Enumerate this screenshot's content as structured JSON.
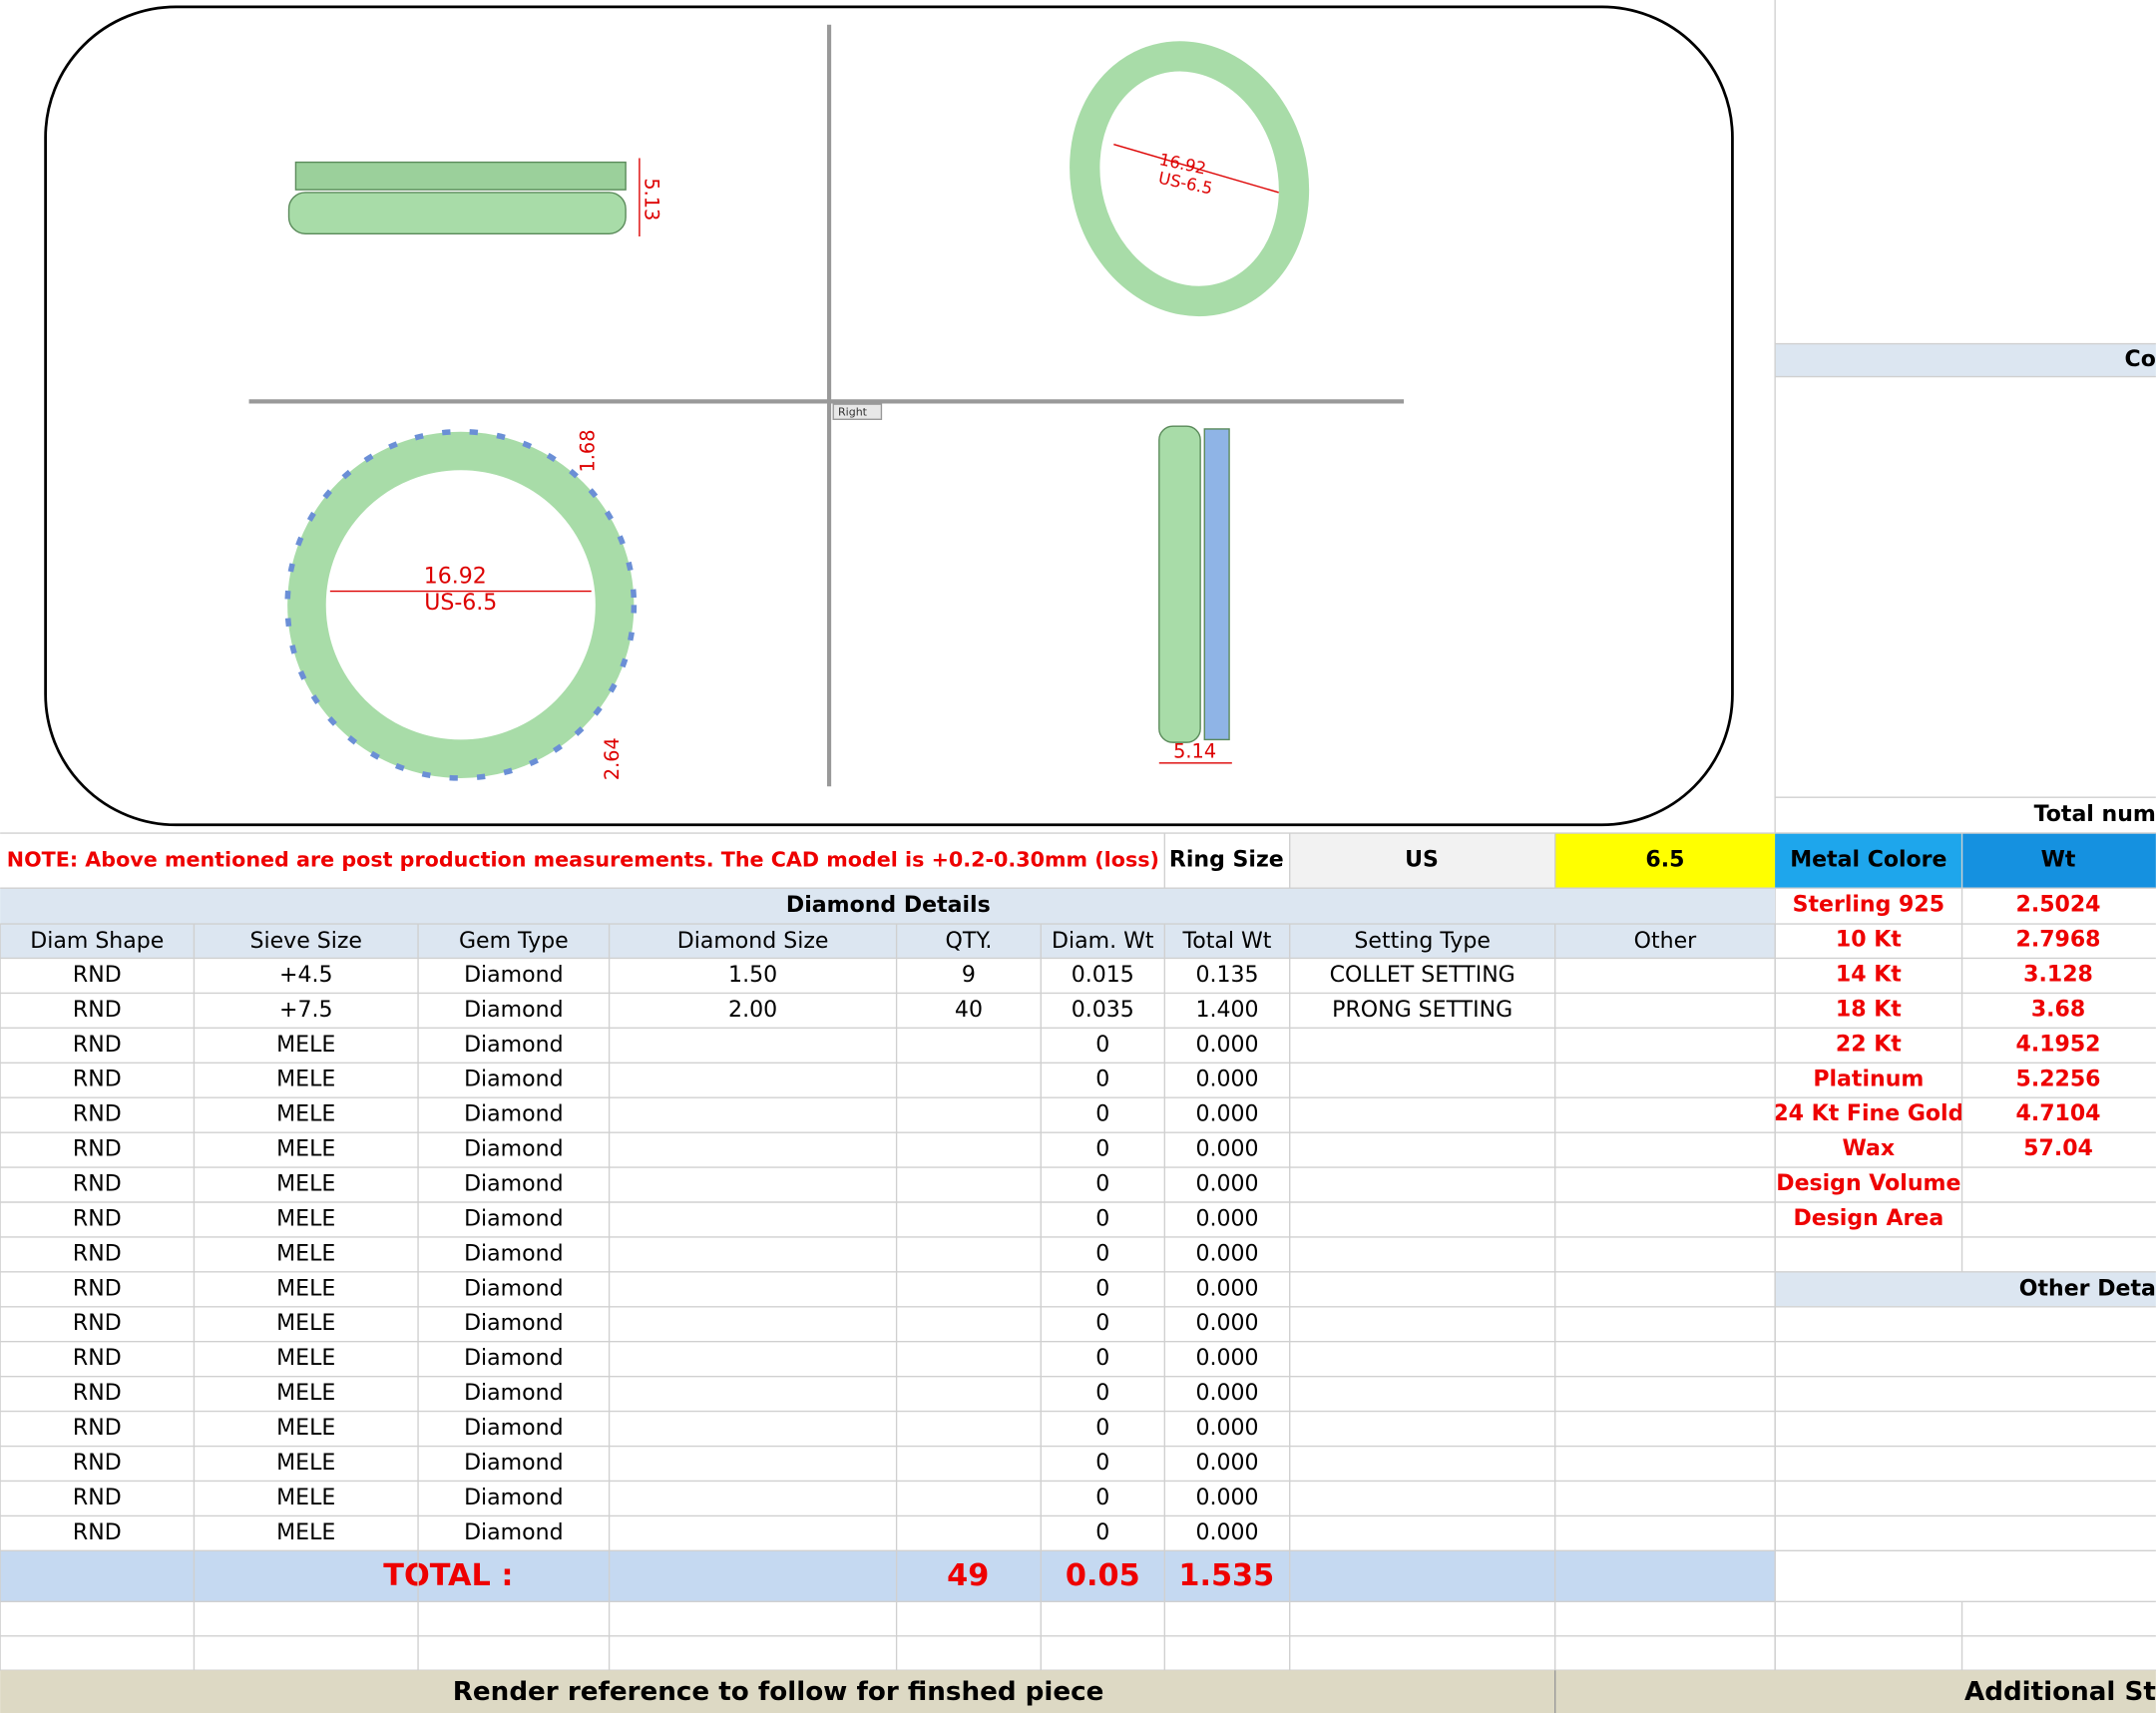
{
  "cad_view": {
    "labels": {
      "top_height": "5.13",
      "iso_diameter": "16.92",
      "iso_size": "US-6.5",
      "front_diameter": "16.92",
      "front_size": "US-6.5",
      "front_top": "1.68",
      "front_bottom": "2.64",
      "side_width": "5.14",
      "view_name": "Right"
    }
  },
  "note": "NOTE: Above mentioned are post production measurements. The CAD model is +0.2-0.30mm (loss)",
  "ring_size": {
    "label": "Ring Size",
    "system": "US",
    "value": "6.5"
  },
  "diamond_details": {
    "title": "Diamond Details",
    "headers": [
      "Diam Shape",
      "Sieve Size",
      "Gem Type",
      "Diamond Size",
      "QTY.",
      "Diam. Wt",
      "Total Wt",
      "Setting Type",
      "Other"
    ],
    "rows": [
      [
        "RND",
        "+4.5",
        "Diamond",
        "1.50",
        "9",
        "0.015",
        "0.135",
        "COLLET SETTING"
      ],
      [
        "RND",
        "+7.5",
        "Diamond",
        "2.00",
        "40",
        "0.035",
        "1.400",
        "PRONG SETTING"
      ],
      [
        "RND",
        "MELE",
        "Diamond",
        null,
        null,
        "0",
        "0.000",
        null
      ],
      [
        "RND",
        "MELE",
        "Diamond",
        null,
        null,
        "0",
        "0.000",
        null
      ],
      [
        "RND",
        "MELE",
        "Diamond",
        null,
        null,
        "0",
        "0.000",
        null
      ],
      [
        "RND",
        "MELE",
        "Diamond",
        null,
        null,
        "0",
        "0.000",
        null
      ],
      [
        "RND",
        "MELE",
        "Diamond",
        null,
        null,
        "0",
        "0.000",
        null
      ],
      [
        "RND",
        "MELE",
        "Diamond",
        null,
        null,
        "0",
        "0.000",
        null
      ],
      [
        "RND",
        "MELE",
        "Diamond",
        null,
        null,
        "0",
        "0.000",
        null
      ],
      [
        "RND",
        "MELE",
        "Diamond",
        null,
        null,
        "0",
        "0.000",
        null
      ],
      [
        "RND",
        "MELE",
        "Diamond",
        null,
        null,
        "0",
        "0.000",
        null
      ],
      [
        "RND",
        "MELE",
        "Diamond",
        null,
        null,
        "0",
        "0.000",
        null
      ],
      [
        "RND",
        "MELE",
        "Diamond",
        null,
        null,
        "0",
        "0.000",
        null
      ],
      [
        "RND",
        "MELE",
        "Diamond",
        null,
        null,
        "0",
        "0.000",
        null
      ],
      [
        "RND",
        "MELE",
        "Diamond",
        null,
        null,
        "0",
        "0.000",
        null
      ],
      [
        "RND",
        "MELE",
        "Diamond",
        null,
        null,
        "0",
        "0.000",
        null
      ],
      [
        "RND",
        "MELE",
        "Diamond",
        null,
        null,
        "0",
        "0.000",
        null
      ]
    ],
    "total": {
      "label": "TOTAL :",
      "qty": "49",
      "diam_wt": "0.05",
      "total_wt": "1.535"
    }
  },
  "metal": {
    "headers": [
      "Metal Colore",
      "Wt"
    ],
    "rows": [
      [
        "Sterling 925",
        "2.5024"
      ],
      [
        "10 Kt",
        "2.7968"
      ],
      [
        "14 Kt",
        "3.128"
      ],
      [
        "18 Kt",
        "3.68"
      ],
      [
        "22 Kt",
        "4.1952"
      ],
      [
        "Platinum",
        "5.2256"
      ],
      [
        "24 Kt Fine Gold",
        "4.7104"
      ],
      [
        "Wax",
        "57.04"
      ],
      [
        "Design Volume",
        null
      ],
      [
        "Design Area",
        null
      ]
    ]
  },
  "right_headers": {
    "top": "Co",
    "count": "Total num",
    "other": "Other Deta"
  },
  "footer": {
    "render": "Render reference to follow for finshed piece",
    "additional": "Additional St"
  }
}
